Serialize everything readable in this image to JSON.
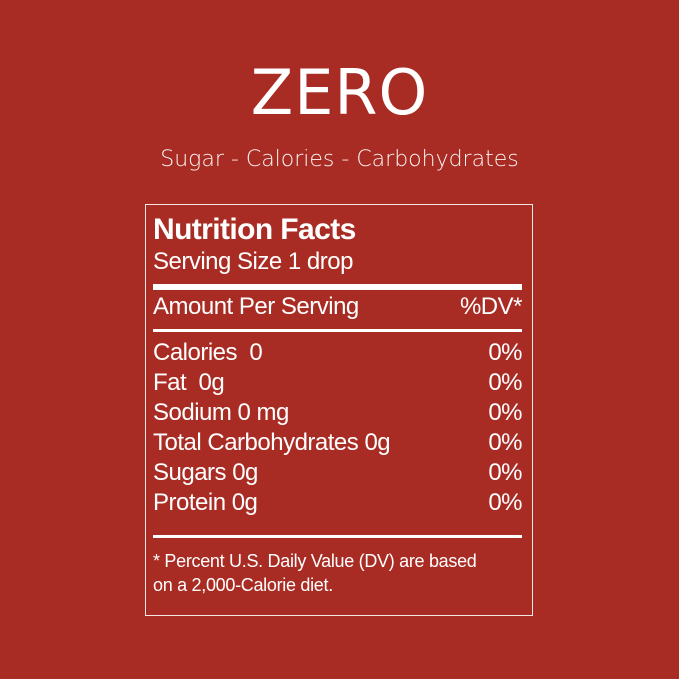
{
  "headline": "ZERO",
  "subtitle": "Sugar - Calories - Carbohydrates",
  "colors": {
    "background": "#a92c24",
    "text": "#ffffff"
  },
  "label": {
    "title": "Nutrition Facts",
    "serving_size": "Serving Size 1 drop",
    "amount_header": "Amount Per Serving",
    "dv_header": "%DV*",
    "rows": [
      {
        "name": "Calories  0",
        "dv": "0%"
      },
      {
        "name": "Fat  0g",
        "dv": "0%"
      },
      {
        "name": "Sodium 0 mg",
        "dv": "0%"
      },
      {
        "name": "Total Carbohydrates 0g",
        "dv": "0%"
      },
      {
        "name": "Sugars 0g",
        "dv": "0%"
      },
      {
        "name": "Protein 0g",
        "dv": "0%"
      }
    ],
    "footnote_line1": "* Percent U.S. Daily Value (DV) are based",
    "footnote_line2": "on a 2,000-Calorie diet."
  }
}
